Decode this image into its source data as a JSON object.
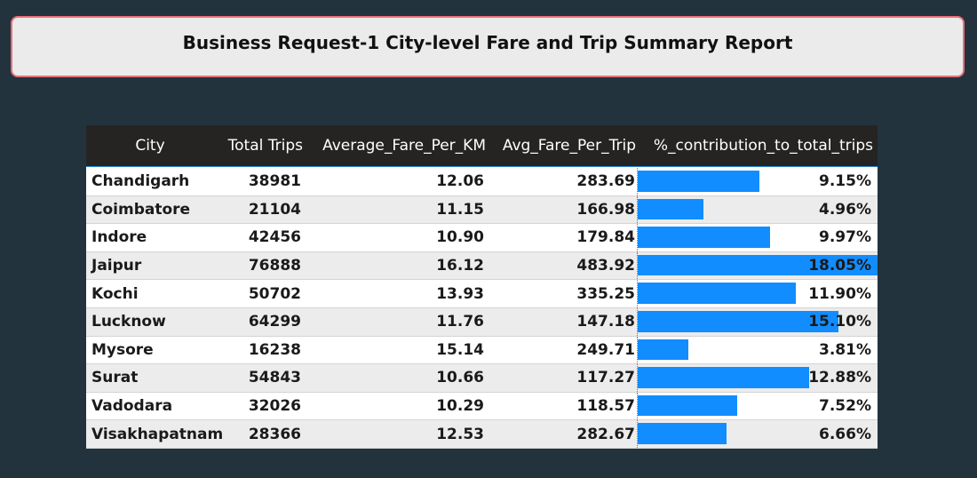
{
  "report": {
    "title": "Business Request-1 City-level Fare and Trip Summary Report"
  },
  "table": {
    "columns": [
      "City",
      "Total Trips",
      "Average_Fare_Per_KM",
      "Avg_Fare_Per_Trip",
      "%_contribution_to_total_trips"
    ],
    "bar_color": "#118dff",
    "header_bg": "#252423",
    "rows": [
      {
        "city": "Chandigarh",
        "total_trips": "38981",
        "avg_fare_per_km": "12.06",
        "avg_fare_per_trip": "283.69",
        "pct": "9.15%",
        "pct_value": 9.15
      },
      {
        "city": "Coimbatore",
        "total_trips": "21104",
        "avg_fare_per_km": "11.15",
        "avg_fare_per_trip": "166.98",
        "pct": "4.96%",
        "pct_value": 4.96
      },
      {
        "city": "Indore",
        "total_trips": "42456",
        "avg_fare_per_km": "10.90",
        "avg_fare_per_trip": "179.84",
        "pct": "9.97%",
        "pct_value": 9.97
      },
      {
        "city": "Jaipur",
        "total_trips": "76888",
        "avg_fare_per_km": "16.12",
        "avg_fare_per_trip": "483.92",
        "pct": "18.05%",
        "pct_value": 18.05
      },
      {
        "city": "Kochi",
        "total_trips": "50702",
        "avg_fare_per_km": "13.93",
        "avg_fare_per_trip": "335.25",
        "pct": "11.90%",
        "pct_value": 11.9
      },
      {
        "city": "Lucknow",
        "total_trips": "64299",
        "avg_fare_per_km": "11.76",
        "avg_fare_per_trip": "147.18",
        "pct": "15.10%",
        "pct_value": 15.1
      },
      {
        "city": "Mysore",
        "total_trips": "16238",
        "avg_fare_per_km": "15.14",
        "avg_fare_per_trip": "249.71",
        "pct": "3.81%",
        "pct_value": 3.81
      },
      {
        "city": "Surat",
        "total_trips": "54843",
        "avg_fare_per_km": "10.66",
        "avg_fare_per_trip": "117.27",
        "pct": "12.88%",
        "pct_value": 12.88
      },
      {
        "city": "Vadodara",
        "total_trips": "32026",
        "avg_fare_per_km": "10.29",
        "avg_fare_per_trip": "118.57",
        "pct": "7.52%",
        "pct_value": 7.52
      },
      {
        "city": "Visakhapatnam",
        "total_trips": "28366",
        "avg_fare_per_km": "12.53",
        "avg_fare_per_trip": "282.67",
        "pct": "6.66%",
        "pct_value": 6.66
      }
    ]
  }
}
